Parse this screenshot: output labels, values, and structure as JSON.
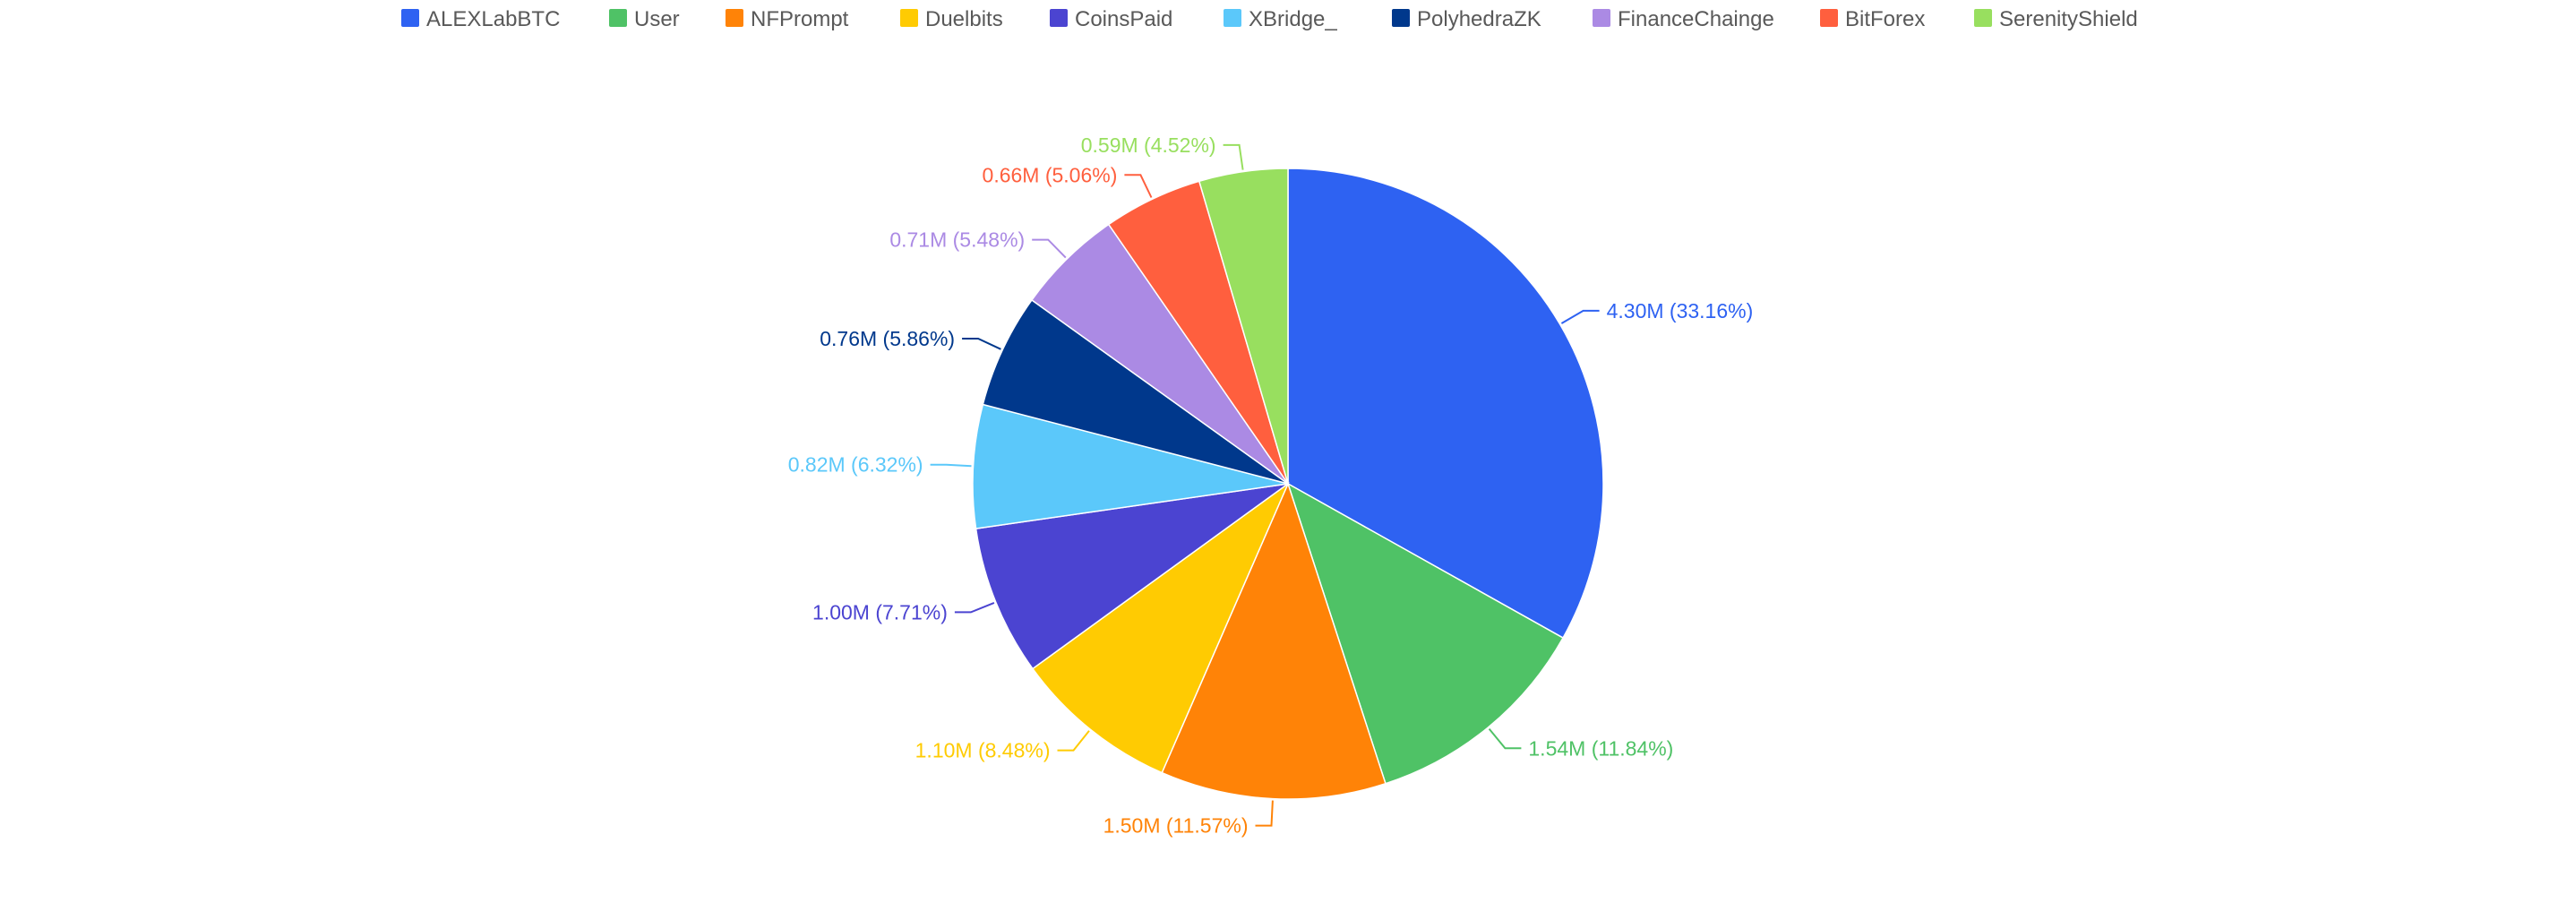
{
  "chart_data": {
    "type": "pie",
    "title": "",
    "legend_position": "top",
    "label_format": "{value}  ({percent})",
    "slices": [
      {
        "name": "ALEXLabBTC",
        "value": 4.3,
        "label_value": "4.30M",
        "percent": "33.16%",
        "color": "#2e62f2"
      },
      {
        "name": "User",
        "value": 1.54,
        "label_value": "1.54M",
        "percent": "11.84%",
        "color": "#4fc266"
      },
      {
        "name": "NFPrompt",
        "value": 1.5,
        "label_value": "1.50M",
        "percent": "11.57%",
        "color": "#ff8307"
      },
      {
        "name": "Duelbits",
        "value": 1.1,
        "label_value": "1.10M",
        "percent": "8.48%",
        "color": "#ffcb02"
      },
      {
        "name": "CoinsPaid",
        "value": 1.0,
        "label_value": "1.00M",
        "percent": "7.71%",
        "color": "#4b44d1"
      },
      {
        "name": "XBridge_",
        "value": 0.82,
        "label_value": "0.82M",
        "percent": "6.32%",
        "color": "#5bc8fa"
      },
      {
        "name": "PolyhedraZK",
        "value": 0.76,
        "label_value": "0.76M",
        "percent": "5.86%",
        "color": "#00388c"
      },
      {
        "name": "FinanceChainge",
        "value": 0.71,
        "label_value": "0.71M",
        "percent": "5.48%",
        "color": "#ab8ae4"
      },
      {
        "name": "BitForex",
        "value": 0.66,
        "label_value": "0.66M",
        "percent": "5.06%",
        "color": "#ff5f3e"
      },
      {
        "name": "SerenityShield",
        "value": 0.59,
        "label_value": "0.59M",
        "percent": "4.52%",
        "color": "#98df5f"
      }
    ]
  }
}
